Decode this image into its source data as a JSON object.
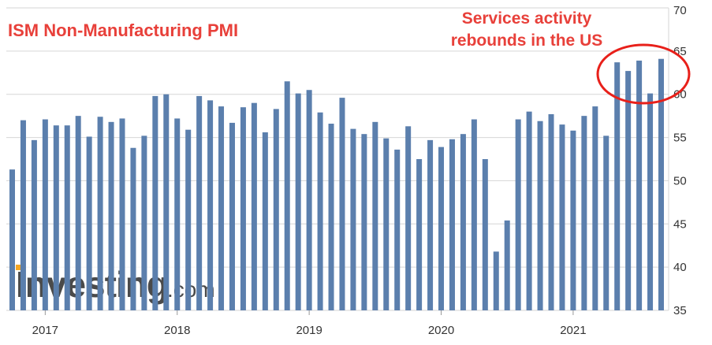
{
  "colors": {
    "bar": "#5b7fad",
    "title": "#e8403a",
    "annotation": "#e8403a",
    "circle": "#e8201a",
    "grid": "#d6d6d6",
    "axis_text": "#333333",
    "watermark_text": "#4a4a4a",
    "watermark_orange": "#f5a623"
  },
  "watermark": {
    "main": "Investing",
    "domain": ".com"
  },
  "chart_data": {
    "type": "bar",
    "title": "ISM Non-Manufacturing PMI",
    "annotation": [
      "Services activity",
      "rebounds in the US"
    ],
    "xlabel": "",
    "ylabel": "",
    "ylim": [
      35,
      70
    ],
    "y_ticks": [
      35,
      40,
      45,
      50,
      55,
      60,
      65,
      70
    ],
    "y_axis_side": "right",
    "grid": true,
    "x_tick_labels": [
      "2017",
      "2018",
      "2019",
      "2020",
      "2021"
    ],
    "x_tick_bar_index": [
      3,
      15,
      27,
      39,
      51
    ],
    "values": [
      51.3,
      57.0,
      54.7,
      57.1,
      56.4,
      56.4,
      57.5,
      55.1,
      57.4,
      56.8,
      57.2,
      53.8,
      55.2,
      59.8,
      60.0,
      57.2,
      55.9,
      59.8,
      59.3,
      58.6,
      56.7,
      58.5,
      59.0,
      55.6,
      58.3,
      61.5,
      60.1,
      60.5,
      57.9,
      56.6,
      59.6,
      56.0,
      55.4,
      56.8,
      54.9,
      53.6,
      56.3,
      52.5,
      54.7,
      53.9,
      54.8,
      55.4,
      57.1,
      52.5,
      41.8,
      45.4,
      57.1,
      58.0,
      56.9,
      57.7,
      56.5,
      55.8,
      57.5,
      58.6,
      55.2,
      63.7,
      62.7,
      63.9,
      60.1,
      64.1
    ]
  }
}
